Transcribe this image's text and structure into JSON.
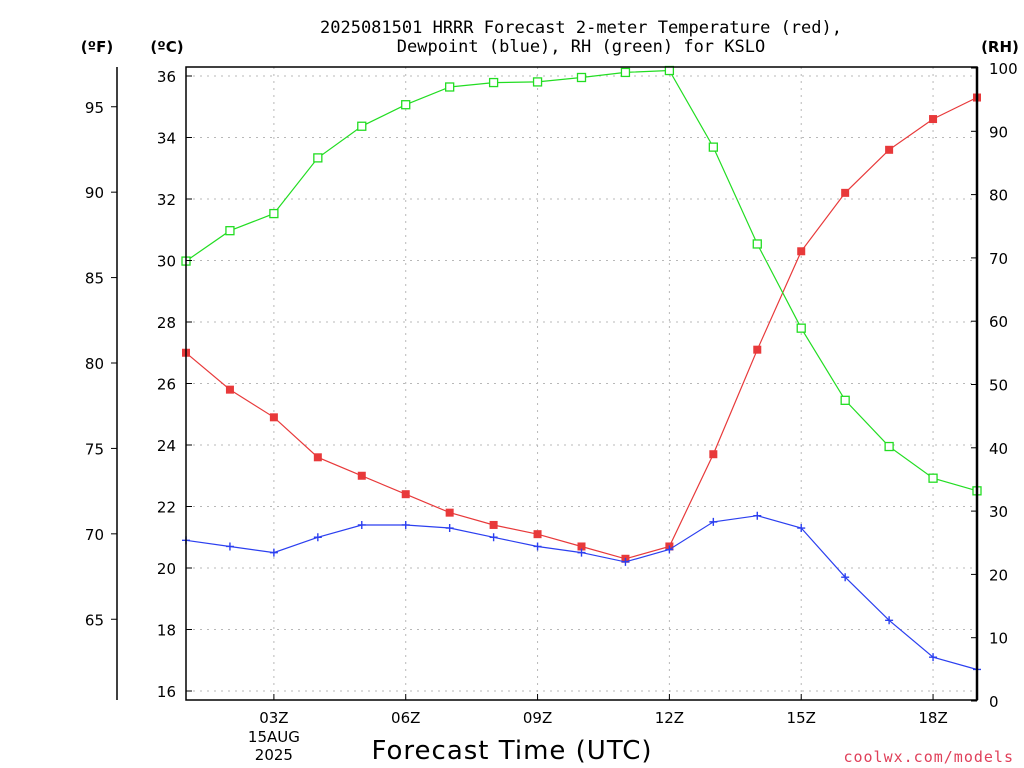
{
  "chart_data": {
    "type": "line",
    "title": [
      "2025081501 HRRR Forecast 2-meter Temperature (red),",
      "Dewpoint (blue), RH (green) for KSLO"
    ],
    "xlabel": "Forecast Time (UTC)",
    "x_ticks": [
      {
        "hour": 3,
        "label": "03Z",
        "sub": [
          "15AUG",
          "2025"
        ]
      },
      {
        "hour": 6,
        "label": "06Z",
        "sub": []
      },
      {
        "hour": 9,
        "label": "09Z",
        "sub": []
      },
      {
        "hour": 12,
        "label": "12Z",
        "sub": []
      },
      {
        "hour": 15,
        "label": "15Z",
        "sub": []
      },
      {
        "hour": 18,
        "label": "18Z",
        "sub": []
      }
    ],
    "xlim": [
      1,
      19
    ],
    "axes": {
      "fahrenheit": {
        "unit": "(ºF)",
        "ticks": [
          65,
          70,
          75,
          80,
          85,
          90,
          95
        ],
        "range": [
          60.8,
          96.8
        ]
      },
      "celsius": {
        "unit": "(ºC)",
        "ticks": [
          16,
          18,
          20,
          22,
          24,
          26,
          28,
          30,
          32,
          34,
          36
        ],
        "range": [
          16,
          36
        ]
      },
      "rh": {
        "unit": "(RH)",
        "ticks": [
          0,
          10,
          20,
          30,
          40,
          50,
          60,
          70,
          80,
          90,
          100
        ],
        "range": [
          0,
          100
        ]
      }
    },
    "x": [
      1,
      2,
      3,
      4,
      5,
      6,
      7,
      8,
      9,
      10,
      11,
      12,
      13,
      14,
      15,
      16,
      17,
      18,
      19
    ],
    "series": [
      {
        "name": "Temperature",
        "axis": "celsius",
        "color": "#e8393a",
        "marker": "filled-square",
        "values": [
          27.0,
          25.8,
          24.9,
          23.6,
          23.0,
          22.4,
          21.8,
          21.4,
          21.1,
          20.7,
          20.3,
          20.7,
          23.7,
          27.1,
          30.3,
          32.2,
          33.6,
          34.6,
          35.3
        ]
      },
      {
        "name": "Dewpoint",
        "axis": "celsius",
        "color": "#2b3ff0",
        "marker": "plus",
        "values": [
          20.9,
          20.7,
          20.5,
          21.0,
          21.4,
          21.4,
          21.3,
          21.0,
          20.7,
          20.5,
          20.2,
          20.6,
          21.5,
          21.7,
          21.3,
          19.7,
          18.3,
          17.1,
          16.7
        ]
      },
      {
        "name": "RH",
        "axis": "rh",
        "color": "#22dd22",
        "marker": "open-square",
        "values": [
          69.5,
          74.3,
          77.0,
          85.8,
          90.8,
          94.2,
          97.0,
          97.7,
          97.8,
          98.5,
          99.3,
          99.6,
          87.5,
          72.2,
          58.9,
          47.5,
          40.2,
          35.2,
          33.2
        ]
      }
    ],
    "grid": true
  },
  "credit": "coolwx.com/models"
}
